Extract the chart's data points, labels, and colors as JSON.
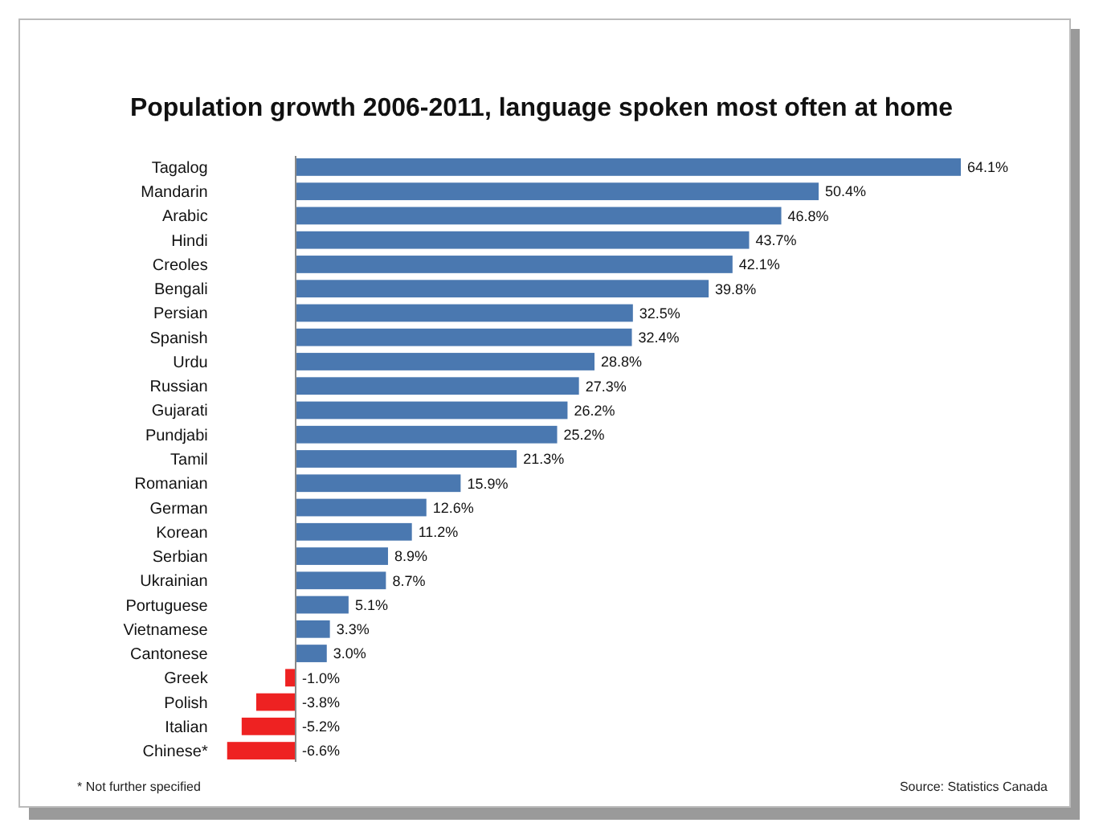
{
  "chart_data": {
    "type": "bar",
    "orientation": "horizontal",
    "title": "Population growth 2006-2011, language spoken most often at home",
    "categories": [
      "Tagalog",
      "Mandarin",
      "Arabic",
      "Hindi",
      "Creoles",
      "Bengali",
      "Persian",
      "Spanish",
      "Urdu",
      "Russian",
      "Gujarati",
      "Pundjabi",
      "Tamil",
      "Romanian",
      "German",
      "Korean",
      "Serbian",
      "Ukrainian",
      "Portuguese",
      "Vietnamese",
      "Cantonese",
      "Greek",
      "Polish",
      "Italian",
      "Chinese*"
    ],
    "values": [
      64.1,
      50.4,
      46.8,
      43.7,
      42.1,
      39.8,
      32.5,
      32.4,
      28.8,
      27.3,
      26.2,
      25.2,
      21.3,
      15.9,
      12.6,
      11.2,
      8.9,
      8.7,
      5.1,
      3.3,
      3.0,
      -1.0,
      -3.8,
      -5.2,
      -6.6
    ],
    "colors": [
      "#4a78b0",
      "#4a78b0",
      "#4a78b0",
      "#4a78b0",
      "#4a78b0",
      "#4a78b0",
      "#4a78b0",
      "#4a78b0",
      "#4a78b0",
      "#4a78b0",
      "#4a78b0",
      "#4a78b0",
      "#4a78b0",
      "#4a78b0",
      "#4a78b0",
      "#4a78b0",
      "#4a78b0",
      "#4a78b0",
      "#4a78b0",
      "#4a78b0",
      "#4a78b0",
      "#ee2222",
      "#ee2222",
      "#ee2222",
      "#ee2222"
    ],
    "value_labels": [
      "64.1%",
      "50.4%",
      "46.8%",
      "43.7%",
      "42.1%",
      "39.8%",
      "32.5%",
      "32.4%",
      "28.8%",
      "27.3%",
      "26.2%",
      "25.2%",
      "21.3%",
      "15.9%",
      "12.6%",
      "11.2%",
      "8.9%",
      "8.7%",
      "5.1%",
      "3.3%",
      "3.0%",
      "-1.0%",
      "-3.8%",
      "-5.2%",
      "-6.6%"
    ],
    "annotations": [
      "* Not further specified",
      "Source: Statistics Canada"
    ]
  }
}
